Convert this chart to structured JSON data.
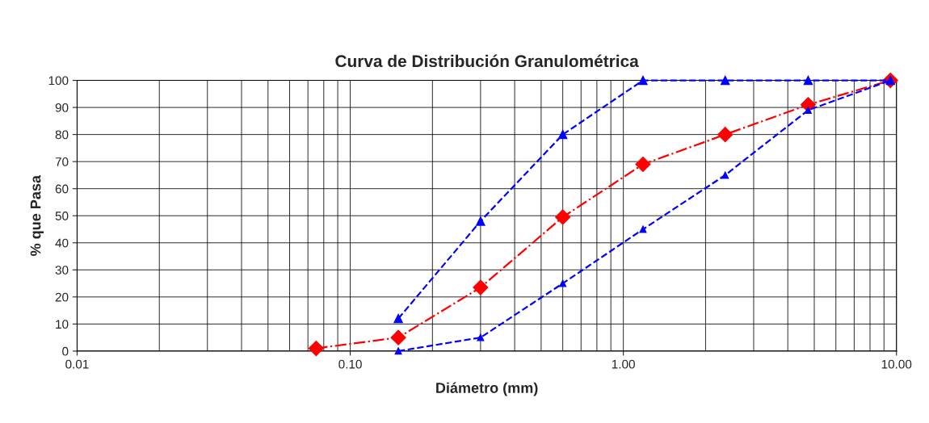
{
  "chart_data": {
    "type": "line",
    "title": "Curva de Distribución Granulométrica",
    "xlabel": "Diámetro (mm)",
    "ylabel": "% que Pasa",
    "log": "x",
    "xlim": [
      0.01,
      10
    ],
    "xticks": [
      {
        "value": 0.01,
        "label": "0.01"
      },
      {
        "value": 0.1,
        "label": "0.10"
      },
      {
        "value": 1,
        "label": "1.00"
      },
      {
        "value": 10,
        "label": "10.00"
      }
    ],
    "ylim": [
      0,
      100
    ],
    "yticks": [
      0,
      10,
      20,
      30,
      40,
      50,
      60,
      70,
      80,
      90,
      100
    ],
    "grid": true,
    "legend": false,
    "series": [
      {
        "color": "#ff0000",
        "marker": "diamond",
        "line_style": "dashdot",
        "x": [
          0.075,
          0.15,
          0.3,
          0.6,
          1.18,
          2.36,
          4.75,
          9.5
        ],
        "values": [
          1,
          5,
          23.5,
          49.5,
          69,
          80,
          91,
          100
        ]
      },
      {
        "color": "#0000ff",
        "marker": "triangle",
        "line_style": "dashed",
        "x": [
          0.15,
          0.3,
          0.6,
          1.18,
          2.36,
          4.75,
          9.5
        ],
        "values": [
          12,
          48,
          80,
          100,
          100,
          100,
          100
        ]
      },
      {
        "color": "#0000ff",
        "marker": "triangle",
        "line_style": "dashed",
        "x": [
          0.15,
          0.3,
          0.6,
          1.18,
          2.36,
          4.75,
          9.5
        ],
        "values": [
          0,
          5,
          25,
          45,
          65,
          89,
          100
        ]
      }
    ]
  }
}
